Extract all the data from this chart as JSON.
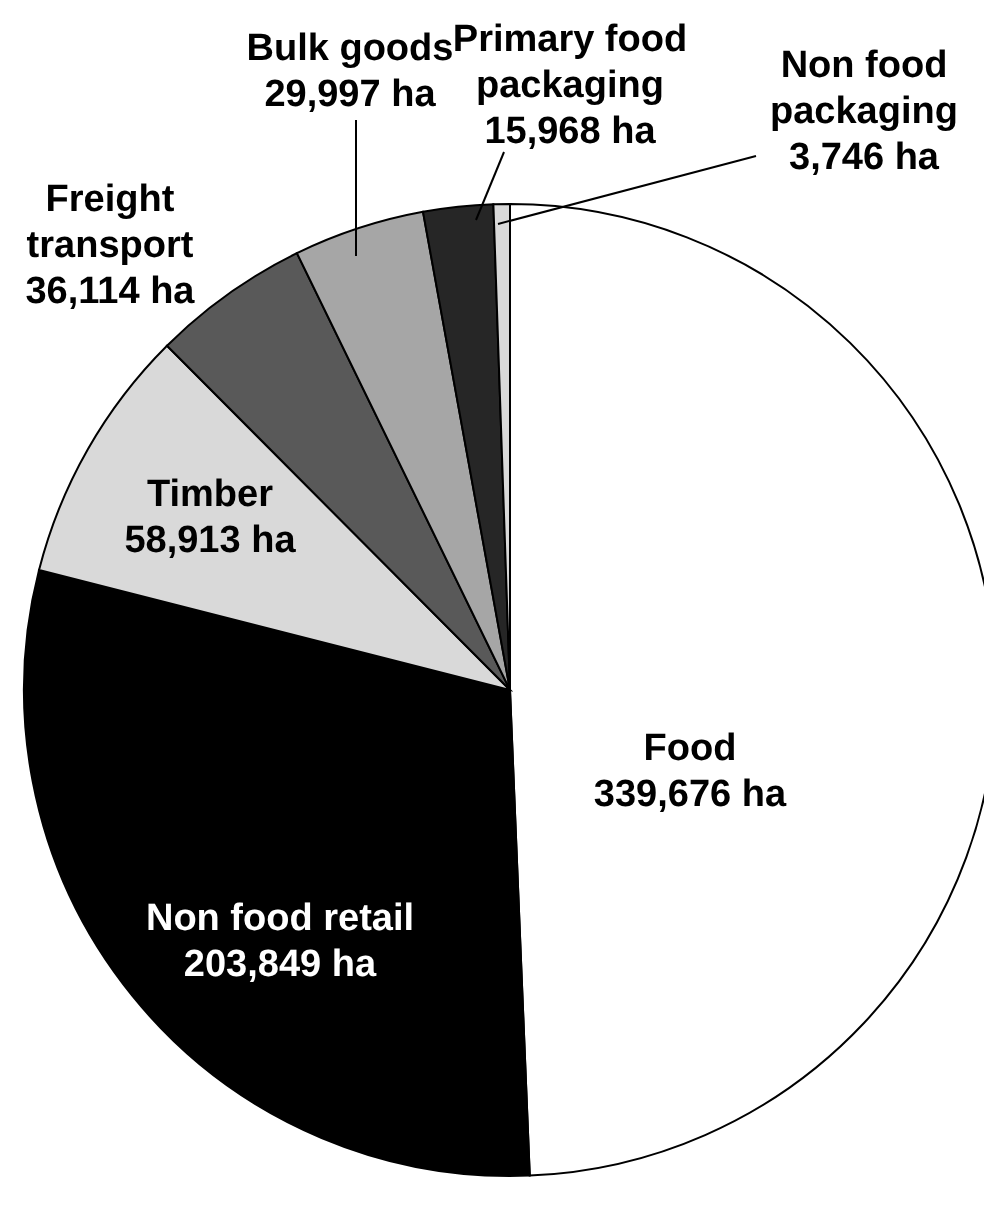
{
  "chart_data": {
    "type": "pie",
    "categories": [
      "Food",
      "Non food retail",
      "Timber",
      "Freight transport",
      "Bulk goods",
      "Primary food packaging",
      "Non food packaging"
    ],
    "values": [
      339676,
      203849,
      58913,
      36114,
      29997,
      15968,
      3746
    ],
    "colors": [
      "#ffffff",
      "#000000",
      "#d9d9d9",
      "#595959",
      "#a6a6a6",
      "#262626",
      "#d9d9d9"
    ],
    "value_labels": [
      "339,676 ha",
      "203,849 ha",
      "58,913 ha",
      "36,114 ha",
      "29,997 ha",
      "15,968 ha",
      "3,746 ha"
    ],
    "legend": false
  }
}
